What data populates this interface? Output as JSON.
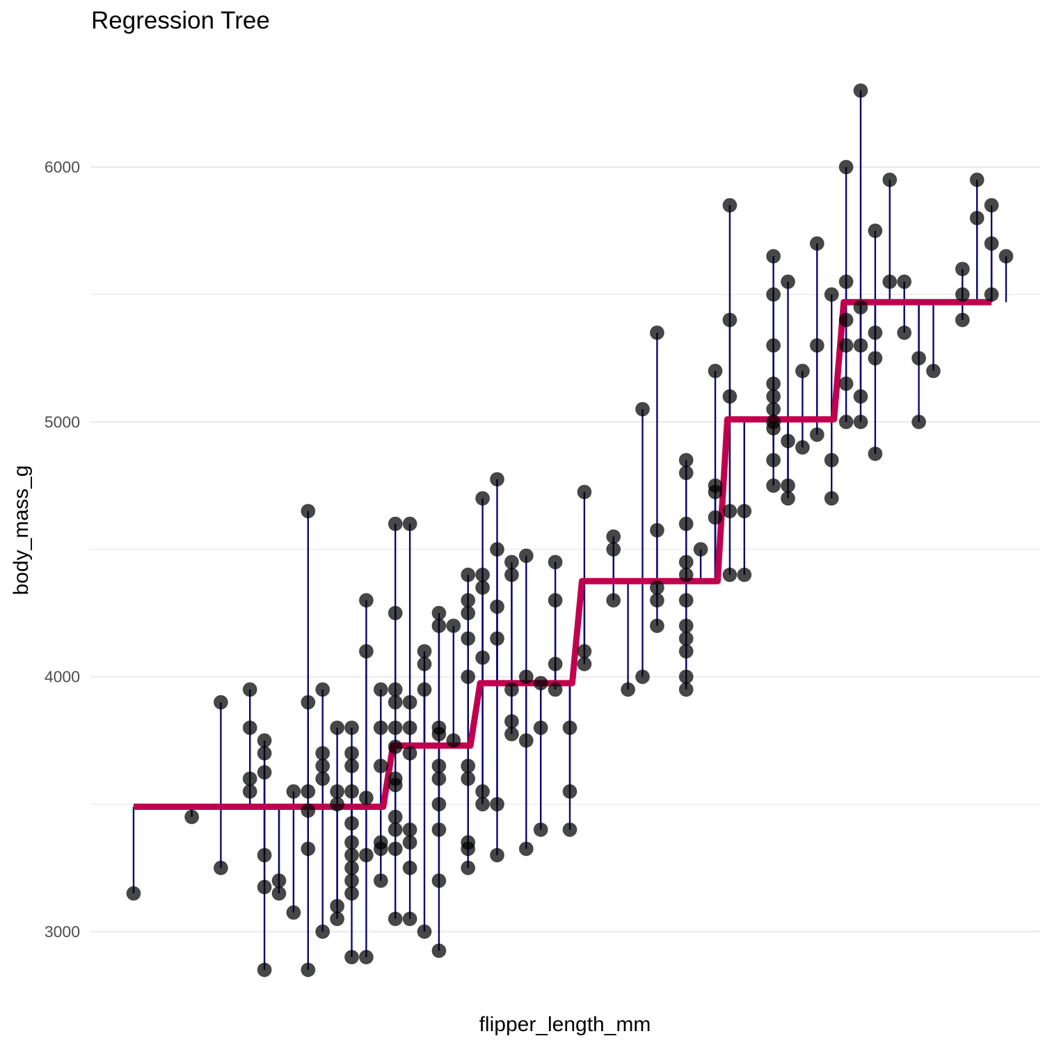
{
  "chart_data": {
    "type": "scatter",
    "title": "Regression Tree",
    "xlabel": "flipper_length_mm",
    "ylabel": "body_mass_g",
    "xlim": [
      171,
      232
    ],
    "ylim": [
      2700,
      6350
    ],
    "y_ticks": [
      3000,
      4000,
      5000,
      6000
    ],
    "x_ticks_shown": false,
    "grid": "horizontal",
    "colors": {
      "points": "#000000",
      "residuals": "#0a0a6e",
      "fit": "#c0004e",
      "grid": "#ebebeb"
    },
    "fit_steps": [
      {
        "from": 172,
        "to": 189.5,
        "value": 3490
      },
      {
        "from": 189.5,
        "to": 195.5,
        "value": 3730
      },
      {
        "from": 195.5,
        "to": 202.5,
        "value": 3975
      },
      {
        "from": 202.5,
        "to": 212.5,
        "value": 4375
      },
      {
        "from": 212.5,
        "to": 220.5,
        "value": 5010
      },
      {
        "from": 220.5,
        "to": 231,
        "value": 5470
      }
    ],
    "points": [
      [
        172,
        3150
      ],
      [
        176,
        3450
      ],
      [
        178,
        3250
      ],
      [
        178,
        3900
      ],
      [
        180,
        3950
      ],
      [
        180,
        3800
      ],
      [
        180,
        3600
      ],
      [
        180,
        3550
      ],
      [
        181,
        3750
      ],
      [
        181,
        3700
      ],
      [
        181,
        3625
      ],
      [
        181,
        3300
      ],
      [
        181,
        3175
      ],
      [
        181,
        2850
      ],
      [
        182,
        3200
      ],
      [
        182,
        3150
      ],
      [
        183,
        3075
      ],
      [
        183,
        3550
      ],
      [
        184,
        4650
      ],
      [
        184,
        3900
      ],
      [
        184,
        3550
      ],
      [
        184,
        3475
      ],
      [
        184,
        3325
      ],
      [
        184,
        2850
      ],
      [
        185,
        3950
      ],
      [
        185,
        3700
      ],
      [
        185,
        3650
      ],
      [
        185,
        3600
      ],
      [
        185,
        3000
      ],
      [
        186,
        3800
      ],
      [
        186,
        3550
      ],
      [
        186,
        3500
      ],
      [
        186,
        3100
      ],
      [
        186,
        3050
      ],
      [
        187,
        3800
      ],
      [
        187,
        3700
      ],
      [
        187,
        3650
      ],
      [
        187,
        3550
      ],
      [
        187,
        3425
      ],
      [
        187,
        3350
      ],
      [
        187,
        3300
      ],
      [
        187,
        3250
      ],
      [
        187,
        3200
      ],
      [
        187,
        3150
      ],
      [
        187,
        2900
      ],
      [
        188,
        4300
      ],
      [
        188,
        4100
      ],
      [
        188,
        3525
      ],
      [
        188,
        3300
      ],
      [
        188,
        2900
      ],
      [
        189,
        3950
      ],
      [
        189,
        3800
      ],
      [
        189,
        3650
      ],
      [
        189,
        3350
      ],
      [
        189,
        3325
      ],
      [
        189,
        3200
      ],
      [
        190,
        4600
      ],
      [
        190,
        4250
      ],
      [
        190,
        3950
      ],
      [
        190,
        3900
      ],
      [
        190,
        3800
      ],
      [
        190,
        3725
      ],
      [
        190,
        3600
      ],
      [
        190,
        3575
      ],
      [
        190,
        3450
      ],
      [
        190,
        3400
      ],
      [
        190,
        3325
      ],
      [
        190,
        3050
      ],
      [
        191,
        4600
      ],
      [
        191,
        3900
      ],
      [
        191,
        3800
      ],
      [
        191,
        3700
      ],
      [
        191,
        3400
      ],
      [
        191,
        3350
      ],
      [
        191,
        3250
      ],
      [
        191,
        3050
      ],
      [
        192,
        4100
      ],
      [
        192,
        4050
      ],
      [
        192,
        3950
      ],
      [
        192,
        3000
      ],
      [
        193,
        4250
      ],
      [
        193,
        4200
      ],
      [
        193,
        3800
      ],
      [
        193,
        3775
      ],
      [
        193,
        3650
      ],
      [
        193,
        3600
      ],
      [
        193,
        3500
      ],
      [
        193,
        3400
      ],
      [
        193,
        3200
      ],
      [
        193,
        2925
      ],
      [
        194,
        4200
      ],
      [
        194,
        3750
      ],
      [
        195,
        4400
      ],
      [
        195,
        4300
      ],
      [
        195,
        4250
      ],
      [
        195,
        4150
      ],
      [
        195,
        4000
      ],
      [
        195,
        3650
      ],
      [
        195,
        3600
      ],
      [
        195,
        3350
      ],
      [
        195,
        3325
      ],
      [
        195,
        3250
      ],
      [
        196,
        4700
      ],
      [
        196,
        4400
      ],
      [
        196,
        4350
      ],
      [
        196,
        4075
      ],
      [
        196,
        3550
      ],
      [
        196,
        3500
      ],
      [
        197,
        4775
      ],
      [
        197,
        4500
      ],
      [
        197,
        4275
      ],
      [
        197,
        4150
      ],
      [
        197,
        3500
      ],
      [
        197,
        3300
      ],
      [
        198,
        4450
      ],
      [
        198,
        4400
      ],
      [
        198,
        3950
      ],
      [
        198,
        3825
      ],
      [
        198,
        3775
      ],
      [
        199,
        4475
      ],
      [
        199,
        4000
      ],
      [
        199,
        3750
      ],
      [
        199,
        3325
      ],
      [
        200,
        3975
      ],
      [
        200,
        3800
      ],
      [
        200,
        3400
      ],
      [
        201,
        4450
      ],
      [
        201,
        4300
      ],
      [
        201,
        4050
      ],
      [
        201,
        3950
      ],
      [
        202,
        3800
      ],
      [
        202,
        3550
      ],
      [
        202,
        3400
      ],
      [
        203,
        4725
      ],
      [
        203,
        4100
      ],
      [
        203,
        4050
      ],
      [
        205,
        4550
      ],
      [
        205,
        4500
      ],
      [
        205,
        4300
      ],
      [
        206,
        3950
      ],
      [
        207,
        5050
      ],
      [
        207,
        4000
      ],
      [
        208,
        5350
      ],
      [
        208,
        4575
      ],
      [
        208,
        4350
      ],
      [
        208,
        4300
      ],
      [
        208,
        4200
      ],
      [
        210,
        4850
      ],
      [
        210,
        4800
      ],
      [
        210,
        4600
      ],
      [
        210,
        4450
      ],
      [
        210,
        4400
      ],
      [
        210,
        4300
      ],
      [
        210,
        4200
      ],
      [
        210,
        4150
      ],
      [
        210,
        4100
      ],
      [
        210,
        4000
      ],
      [
        210,
        3950
      ],
      [
        211,
        4500
      ],
      [
        212,
        5200
      ],
      [
        212,
        4750
      ],
      [
        212,
        4725
      ],
      [
        212,
        4625
      ],
      [
        213,
        5850
      ],
      [
        213,
        5400
      ],
      [
        213,
        5100
      ],
      [
        213,
        4650
      ],
      [
        213,
        4400
      ],
      [
        214,
        4650
      ],
      [
        214,
        4400
      ],
      [
        216,
        5650
      ],
      [
        216,
        5500
      ],
      [
        216,
        5300
      ],
      [
        216,
        5150
      ],
      [
        216,
        5100
      ],
      [
        216,
        5050
      ],
      [
        216,
        5000
      ],
      [
        216,
        4975
      ],
      [
        216,
        4850
      ],
      [
        216,
        4750
      ],
      [
        217,
        5550
      ],
      [
        217,
        4925
      ],
      [
        217,
        4750
      ],
      [
        217,
        4700
      ],
      [
        218,
        5200
      ],
      [
        218,
        4900
      ],
      [
        219,
        5700
      ],
      [
        219,
        5300
      ],
      [
        219,
        4950
      ],
      [
        220,
        5500
      ],
      [
        220,
        4850
      ],
      [
        220,
        4700
      ],
      [
        221,
        6000
      ],
      [
        221,
        5550
      ],
      [
        221,
        5400
      ],
      [
        221,
        5300
      ],
      [
        221,
        5150
      ],
      [
        221,
        5000
      ],
      [
        222,
        6300
      ],
      [
        222,
        5450
      ],
      [
        222,
        5300
      ],
      [
        222,
        5100
      ],
      [
        222,
        5000
      ],
      [
        223,
        5750
      ],
      [
        223,
        5350
      ],
      [
        223,
        5250
      ],
      [
        223,
        4875
      ],
      [
        224,
        5950
      ],
      [
        224,
        5550
      ],
      [
        225,
        5550
      ],
      [
        225,
        5350
      ],
      [
        226,
        5250
      ],
      [
        226,
        5000
      ],
      [
        227,
        5200
      ],
      [
        229,
        5600
      ],
      [
        229,
        5500
      ],
      [
        229,
        5400
      ],
      [
        230,
        5950
      ],
      [
        230,
        5800
      ],
      [
        231,
        5850
      ],
      [
        231,
        5700
      ],
      [
        231,
        5500
      ],
      [
        232,
        5650
      ]
    ]
  }
}
